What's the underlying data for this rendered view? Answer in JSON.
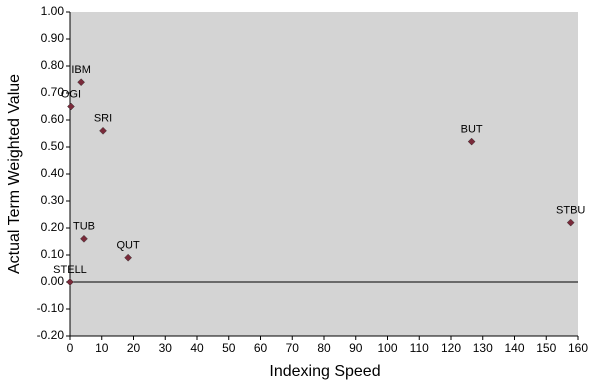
{
  "chart_data": {
    "type": "scatter",
    "x_label": "Indexing Speed",
    "y_label": "Actual Term Weighted Value",
    "point_labels": [
      "OGI",
      "IBM",
      "SRI",
      "BUT",
      "STBU",
      "TUB",
      "QUT",
      "STELL"
    ],
    "x": [
      0.3,
      3.5,
      10.4,
      126.5,
      157.7,
      4.4,
      18.3,
      0
    ],
    "values": [
      0.65,
      0.74,
      0.56,
      0.52,
      0.22,
      0.16,
      0.09,
      0
    ],
    "color": "#7a2a3a",
    "xlim": [
      0,
      160
    ],
    "xticks": [
      0,
      10,
      20,
      30,
      40,
      50,
      60,
      70,
      80,
      90,
      100,
      110,
      120,
      130,
      140,
      150,
      160
    ],
    "ylim": [
      -0.2,
      1.0
    ],
    "yticks": [
      {
        "value": -0.2,
        "label": "-0.20"
      },
      {
        "value": -0.1,
        "label": "-0.10"
      },
      {
        "value": 0,
        "label": "0.00"
      },
      {
        "value": 0.1,
        "label": "0.10"
      },
      {
        "value": 0.2,
        "label": "0.20"
      },
      {
        "value": 0.3,
        "label": "0.30"
      },
      {
        "value": 0.4,
        "label": "0.40"
      },
      {
        "value": 0.5,
        "label": "0.50"
      },
      {
        "value": 0.6,
        "label": "0.60"
      },
      {
        "value": 0.7,
        "label": "0.70"
      },
      {
        "value": 0.8,
        "label": "0.80"
      },
      {
        "value": 0.9,
        "label": "0.90"
      },
      {
        "value": 1.0,
        "label": "1.00"
      }
    ],
    "plot_background": "#d4d4d4"
  }
}
